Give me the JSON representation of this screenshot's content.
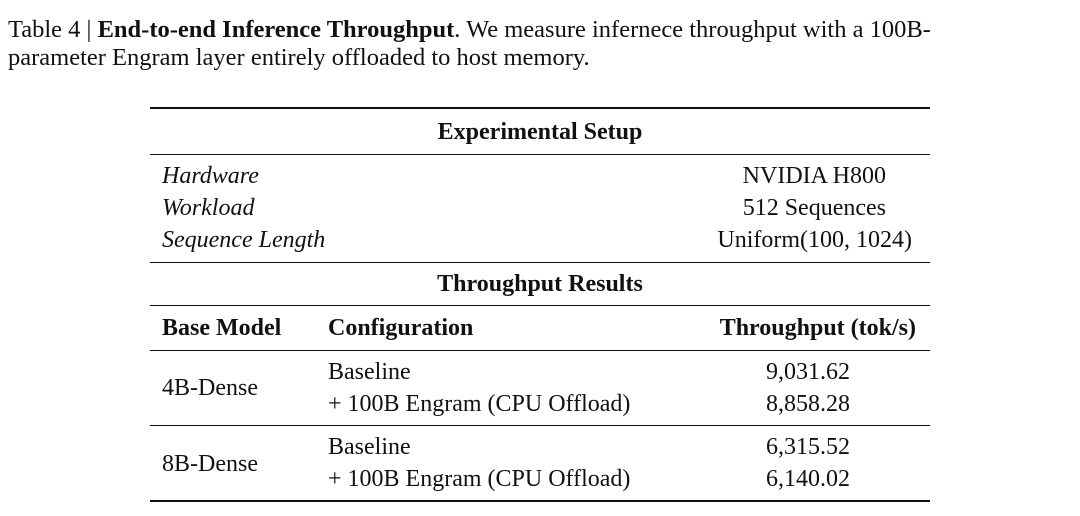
{
  "caption": {
    "label": "Table 4 |",
    "title": "End-to-end Inference Throughput",
    "text_line1": ". We measure infernece throughput with a 100B-",
    "text_line2": "parameter Engram layer entirely offloaded to host memory."
  },
  "setup": {
    "heading": "Experimental Setup",
    "rows": [
      {
        "label": "Hardware",
        "value": "NVIDIA H800"
      },
      {
        "label": "Workload",
        "value": "512 Sequences"
      },
      {
        "label": "Sequence Length",
        "value": "Uniform(100, 1024)"
      }
    ]
  },
  "results": {
    "heading": "Throughput Results",
    "columns": [
      "Base Model",
      "Configuration",
      "Throughput (tok/s)"
    ],
    "groups": [
      {
        "model": "4B-Dense",
        "rows": [
          {
            "config": "Baseline",
            "throughput": "9,031.62"
          },
          {
            "config": "+ 100B Engram (CPU Offload)",
            "throughput": "8,858.28"
          }
        ]
      },
      {
        "model": "8B-Dense",
        "rows": [
          {
            "config": "Baseline",
            "throughput": "6,315.52"
          },
          {
            "config": "+ 100B Engram (CPU Offload)",
            "throughput": "6,140.02"
          }
        ]
      }
    ]
  }
}
